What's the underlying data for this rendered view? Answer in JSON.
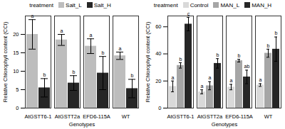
{
  "chart_data": [
    {
      "type": "bar",
      "x_label": "Genotypes",
      "y_label": "Relative Chlorophyll content (CCI)",
      "legend": "top",
      "legend_title": "treatment",
      "grid": false,
      "categories": [
        "AtGSTT6-1",
        "AtGSTT2a",
        "EFD6-115A",
        "WT"
      ],
      "series": [
        {
          "name": "Salt_L",
          "color": "#bdbdbd",
          "values": [
            20,
            18.5,
            16.8,
            14.2
          ],
          "errors": [
            4,
            1.5,
            2,
            1
          ],
          "letters": [
            "a",
            "a",
            "a",
            "a"
          ]
        },
        {
          "name": "Salt_H",
          "color": "#262626",
          "values": [
            5.5,
            6.8,
            9.5,
            5.3
          ],
          "errors": [
            2.5,
            2,
            4.5,
            2.5
          ],
          "letters": [
            "b",
            "b",
            "b",
            "b"
          ]
        }
      ],
      "ylim": [
        0,
        25
      ],
      "yticks": [
        0,
        5,
        10,
        15,
        20
      ]
    },
    {
      "type": "bar",
      "x_label": "Genotypes",
      "y_label": "Relative Chlorophyll content (CCI)",
      "legend": "top",
      "legend_title": "treatment",
      "grid": false,
      "categories": [
        "AtGSTT6-1",
        "AtGSTT2a",
        "EFD6-115A",
        "WT"
      ],
      "series": [
        {
          "name": "Control",
          "color": "#d9d9d9",
          "values": [
            16,
            12,
            15.5,
            17
          ],
          "errors": [
            4,
            1.5,
            2,
            1
          ],
          "letters": [
            "a",
            "a",
            "a",
            "a"
          ]
        },
        {
          "name": "MAN_L",
          "color": "#a6a6a6",
          "values": [
            31.5,
            16.5,
            35,
            40.5
          ],
          "errors": [
            2,
            3,
            1,
            3
          ],
          "letters": [
            "b",
            "a",
            "b",
            "b"
          ]
        },
        {
          "name": "MAN_H",
          "color": "#262626",
          "values": [
            62,
            33,
            23,
            43.5
          ],
          "errors": [
            5,
            3.5,
            5,
            9
          ],
          "letters": [
            "c",
            "b",
            "ab",
            "b"
          ]
        }
      ],
      "ylim": [
        0,
        68
      ],
      "yticks": [
        0,
        20,
        40,
        60
      ]
    }
  ]
}
